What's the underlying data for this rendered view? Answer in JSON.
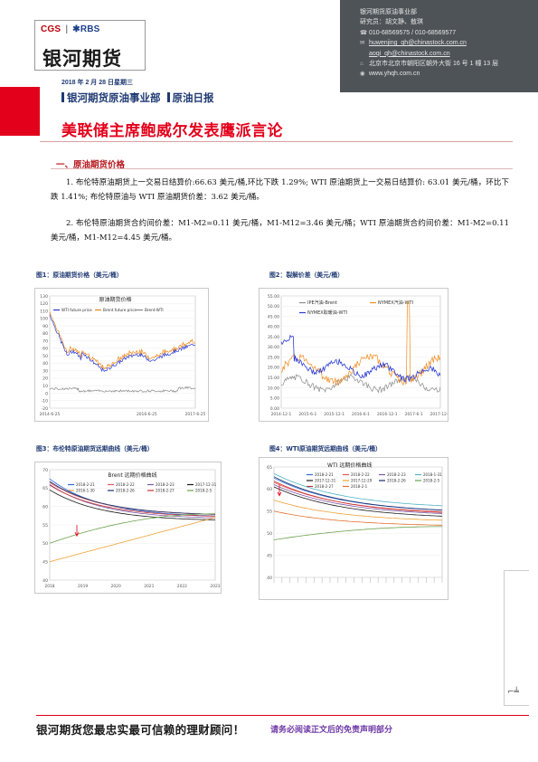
{
  "header": {
    "logo_top_left": "CGS",
    "logo_top_right": "RBS",
    "logo_main": "银河期货",
    "date_line": "2018 年 2 月 28 日星期三",
    "dept_line": "银河期货原油事业部",
    "report_type": "原油日报",
    "title": "美联储主席鲍威尔发表鹰派言论"
  },
  "info_panel": {
    "dept": "银河期货原油事业部",
    "researchers": "研究员：胡文静、敖琪",
    "phone": "010-68569575 / 010-68569577",
    "email1": "huwenjing_qh@chinastock.com.cn",
    "email2": "aoqi_qh@chinastock.com.cn",
    "address": "北京市北京市朝阳区朝外大街 16 号 1 幢 13 层",
    "web": "www.yhqh.com.cn",
    "icons": {
      "phone": "phone-icon",
      "email": "mail-icon",
      "address": "location-icon",
      "web": "globe-icon"
    }
  },
  "section1": {
    "title": "一、原油期货价格",
    "para1": "1. 布伦特原油期货上一交易日结算价:66.63 美元/桶,环比下跌 1.29%; WTI 原油期货上一交易日结算价: 63.01 美元/桶，环比下跌 1.41%; 布伦特原油与 WTI 原油期货价差：3.62 美元/桶。",
    "para2": "2. 布伦特原油期货合约间价差：M1-M2=0.11 美元/桶，M1-M12=3.46 美元/桶；WTI 原油期货合约间价差：M1-M2=0.11 美元/桶，M1-M12=4.45 美元/桶。"
  },
  "figures": {
    "fig1_caption": "图1：原油期货价格（美元/桶）",
    "fig2_caption": "图2：裂解价差（美元/桶）",
    "fig3_caption": "图3：布伦特原油期货远期曲线（美元/桶）",
    "fig4_caption": "图4：WTI原油期货远期曲线（美元/桶）"
  },
  "chart_data": [
    {
      "type": "line",
      "title": "原油期货价格",
      "series": [
        {
          "name": "WTI future price",
          "color": "#2b3bd6"
        },
        {
          "name": "Brent future price",
          "color": "#f08a1c"
        },
        {
          "name": "Brent-WTI",
          "color": "#8a8a8a"
        }
      ],
      "ylim": [
        -20,
        130
      ],
      "yticks": [
        "130",
        "120",
        "110",
        "100",
        "90",
        "80",
        "70",
        "60",
        "50",
        "40",
        "30",
        "20",
        "10",
        "0",
        "-10",
        "-20"
      ],
      "xticks": [
        "2014-6-25",
        "",
        "2016-6-25",
        "2017-6-25"
      ]
    },
    {
      "type": "line",
      "series": [
        {
          "name": "IPE汽油-Brent",
          "color": "#8a8a8a"
        },
        {
          "name": "NYMEX汽油-WTI",
          "color": "#f08a1c"
        },
        {
          "name": "NYMEX取暖油-WTI",
          "color": "#2b3bd6"
        }
      ],
      "ylim": [
        0,
        55
      ],
      "yticks": [
        "55.00",
        "50.00",
        "45.00",
        "40.00",
        "35.00",
        "30.00",
        "25.00",
        "20.00",
        "15.00",
        "10.00",
        "5.00",
        "0.00"
      ],
      "xticks": [
        "2014-12-1",
        "2015-6-1",
        "2015-12-1",
        "2016-6-1",
        "2016-12-1",
        "2017-6-1",
        "2017-12-1"
      ]
    },
    {
      "type": "line",
      "title": "Brent 远期价格曲线",
      "series": [
        {
          "name": "2018-2-21",
          "color": "#2b6bd6"
        },
        {
          "name": "2018-2-22",
          "color": "#e05a5a"
        },
        {
          "name": "2018-2-23",
          "color": "#7a5aa6"
        },
        {
          "name": "2017-12-31",
          "color": "#1a1a1a"
        },
        {
          "name": "2016-1-30",
          "color": "#f0a030"
        },
        {
          "name": "2018-2-26",
          "color": "#1a2f6b"
        },
        {
          "name": "2018-2-27",
          "color": "#c83030"
        },
        {
          "name": "2018-2-5",
          "color": "#6aa04a"
        }
      ],
      "ylim": [
        40,
        70
      ],
      "yticks": [
        "70",
        "65",
        "60",
        "55",
        "50",
        "45",
        "40"
      ],
      "xticks": [
        "2018",
        "2019",
        "2020",
        "2021",
        "2022",
        "2023"
      ]
    },
    {
      "type": "line",
      "title": "WTI 远期价格曲线",
      "series": [
        {
          "name": "2018-2-21",
          "color": "#2b6bd6"
        },
        {
          "name": "2018-2-22",
          "color": "#e05a5a"
        },
        {
          "name": "2018-2-23",
          "color": "#7a5aa6"
        },
        {
          "name": "2018-1-31",
          "color": "#4bb3c8"
        },
        {
          "name": "2017-12-31",
          "color": "#1a1a1a"
        },
        {
          "name": "2017-12-29",
          "color": "#f0a030"
        },
        {
          "name": "2018-2-26",
          "color": "#1a2f6b"
        },
        {
          "name": "2018-2-5",
          "color": "#6aa04a"
        },
        {
          "name": "2018-2-27",
          "color": "#c83030"
        },
        {
          "name": "2018-2-1",
          "color": "#e07030"
        }
      ],
      "ylim": [
        40,
        65
      ],
      "yticks": [
        "65",
        "60",
        "55",
        "50",
        "45",
        "40"
      ]
    }
  ],
  "footer": {
    "slogan": "银河期货您最忠实最可信赖的理财顾问！",
    "disclaimer": "请务必阅读正文后的免责声明部分"
  }
}
